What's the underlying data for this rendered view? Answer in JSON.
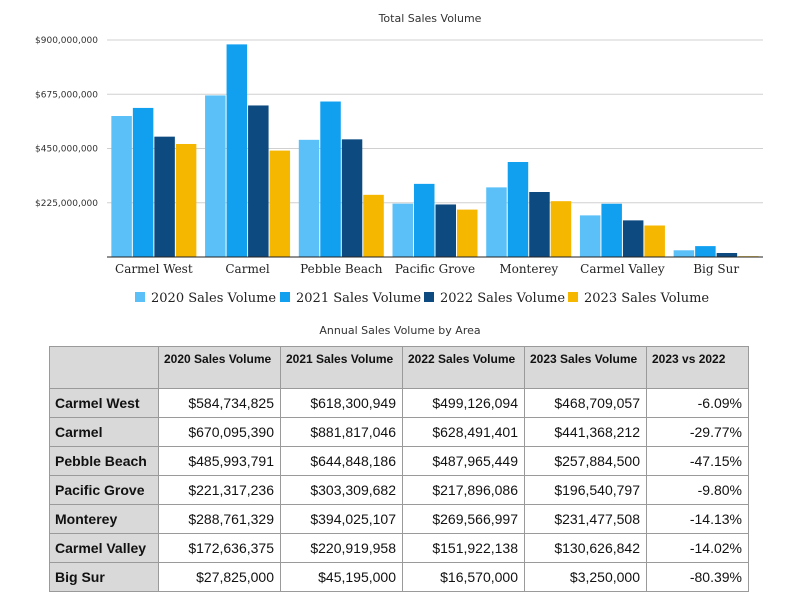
{
  "chart_data": {
    "type": "bar",
    "title": "Total Sales Volume",
    "xlabel": "",
    "ylabel": "",
    "ylim": [
      0,
      900000000
    ],
    "yticks": [
      225000000,
      450000000,
      675000000,
      900000000
    ],
    "ytick_labels": [
      "$225,000,000",
      "$450,000,000",
      "$675,000,000",
      "$900,000,000"
    ],
    "categories": [
      "Carmel West",
      "Carmel",
      "Pebble Beach",
      "Pacific Grove",
      "Monterey",
      "Carmel Valley",
      "Big Sur"
    ],
    "series": [
      {
        "name": "2020 Sales Volume",
        "color": "#5bc0f8",
        "values": [
          584734825,
          670095390,
          485993791,
          221317236,
          288761329,
          172636375,
          27825000
        ]
      },
      {
        "name": "2021 Sales Volume",
        "color": "#11a0f0",
        "values": [
          618300949,
          881817046,
          644848186,
          303309682,
          394025107,
          220919958,
          45195000
        ]
      },
      {
        "name": "2022 Sales Volume",
        "color": "#0d4a80",
        "values": [
          499126094,
          628491401,
          487965449,
          217896086,
          269566997,
          151922138,
          16570000
        ]
      },
      {
        "name": "2023 Sales Volume",
        "color": "#f5b700",
        "values": [
          468709057,
          441368212,
          257884500,
          196540797,
          231477508,
          130626842,
          3250000
        ]
      }
    ],
    "legend_position": "bottom",
    "grid": true
  },
  "table": {
    "title": "Annual Sales Volume by Area",
    "corner": "",
    "headers": [
      "2020 Sales Volume",
      "2021 Sales Volume",
      "2022 Sales Volume",
      "2023 Sales Volume",
      "2023 vs 2022"
    ],
    "rows": [
      {
        "area": "Carmel West",
        "cells": [
          "$584,734,825",
          "$618,300,949",
          "$499,126,094",
          "$468,709,057",
          "-6.09%"
        ]
      },
      {
        "area": "Carmel",
        "cells": [
          "$670,095,390",
          "$881,817,046",
          "$628,491,401",
          "$441,368,212",
          "-29.77%"
        ]
      },
      {
        "area": "Pebble Beach",
        "cells": [
          "$485,993,791",
          "$644,848,186",
          "$487,965,449",
          "$257,884,500",
          "-47.15%"
        ]
      },
      {
        "area": "Pacific Grove",
        "cells": [
          "$221,317,236",
          "$303,309,682",
          "$217,896,086",
          "$196,540,797",
          "-9.80%"
        ]
      },
      {
        "area": "Monterey",
        "cells": [
          "$288,761,329",
          "$394,025,107",
          "$269,566,997",
          "$231,477,508",
          "-14.13%"
        ]
      },
      {
        "area": "Carmel Valley",
        "cells": [
          "$172,636,375",
          "$220,919,958",
          "$151,922,138",
          "$130,626,842",
          "-14.02%"
        ]
      },
      {
        "area": "Big Sur",
        "cells": [
          "$27,825,000",
          "$45,195,000",
          "$16,570,000",
          "$3,250,000",
          "-80.39%"
        ]
      }
    ]
  }
}
